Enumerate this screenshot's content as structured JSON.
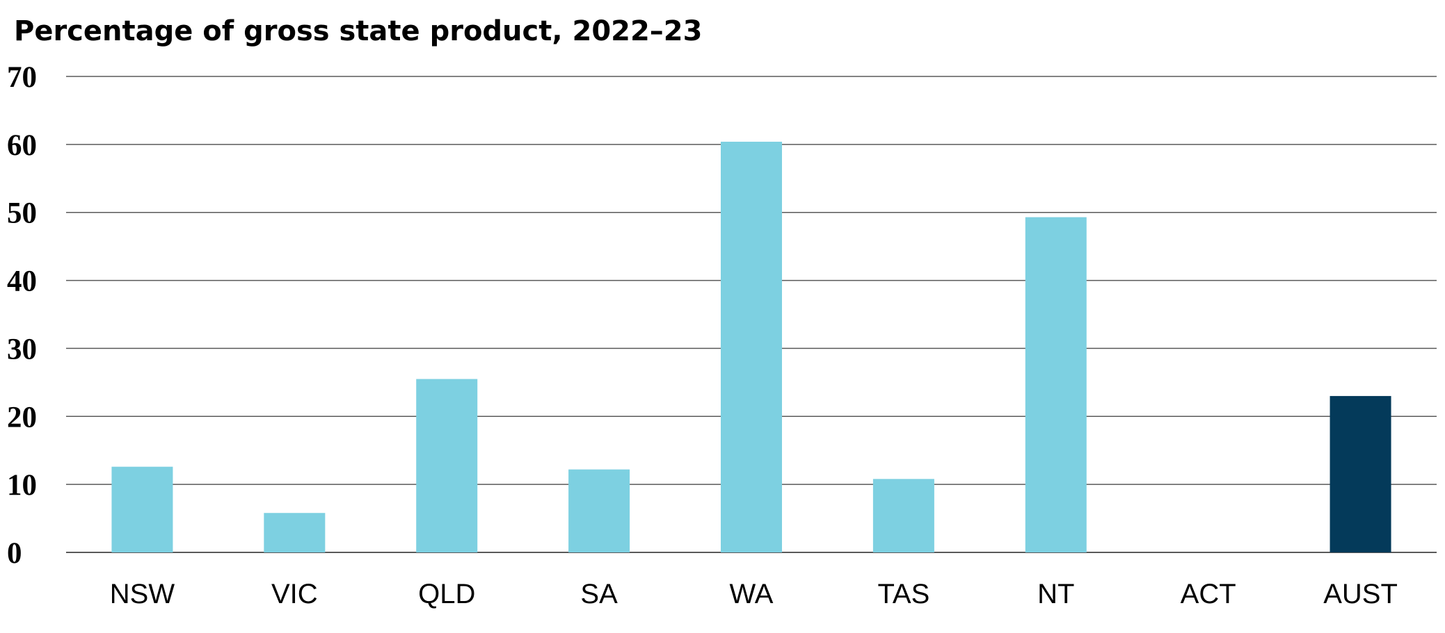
{
  "chart_data": {
    "type": "bar",
    "title": "Percentage of gross state product, 2022–23",
    "xlabel": "",
    "ylabel": "",
    "categories": [
      "NSW",
      "VIC",
      "QLD",
      "SA",
      "WA",
      "TAS",
      "NT",
      "ACT",
      "AUST"
    ],
    "values": [
      12.6,
      5.8,
      25.5,
      12.2,
      60.4,
      10.8,
      49.3,
      0,
      23.0
    ],
    "ylim": [
      0,
      70
    ],
    "yticks": [
      0,
      10,
      20,
      30,
      40,
      50,
      60,
      70
    ],
    "grid": true,
    "legend": "none",
    "colors": {
      "default_bar": "#7dd0e1",
      "highlight_bar": "#043a5a",
      "highlight_category": "AUST",
      "gridline": "#595959",
      "text": "#000000"
    }
  }
}
